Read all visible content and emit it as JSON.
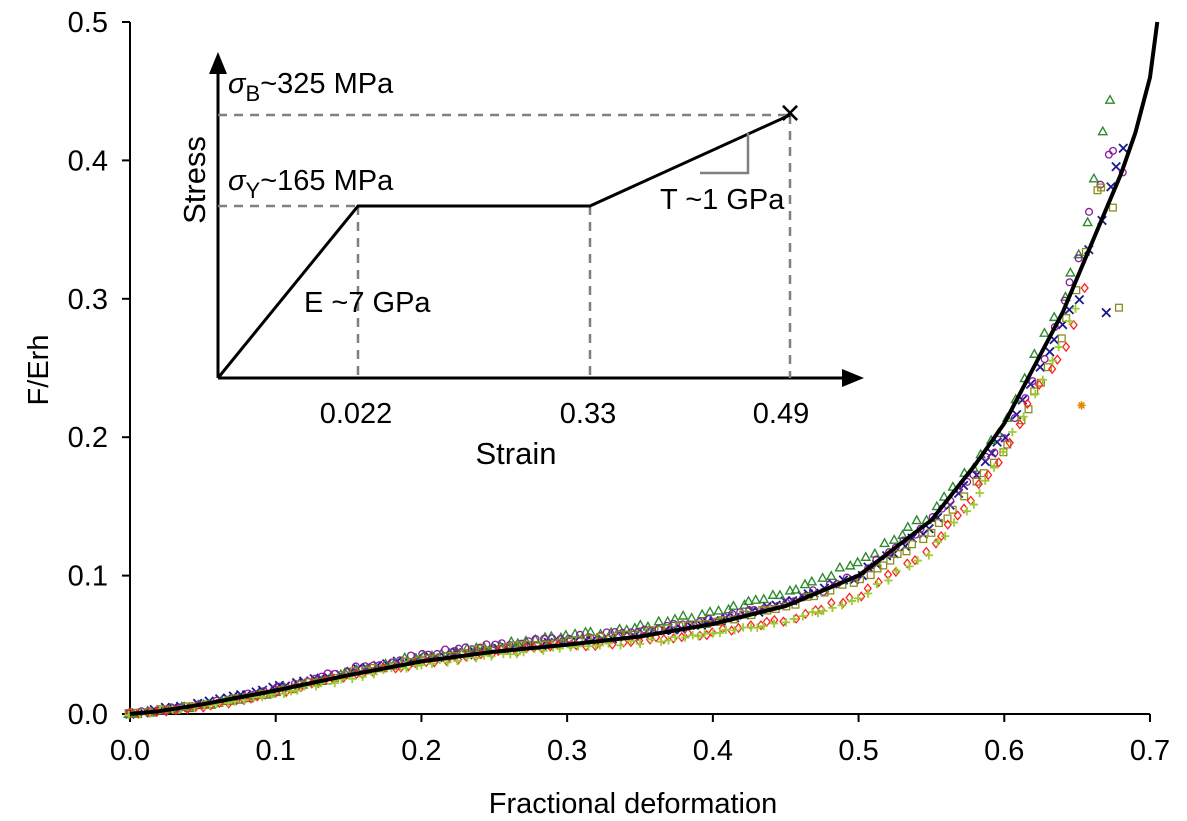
{
  "chart_data": {
    "type": "scatter",
    "title": "",
    "xlabel": "Fractional deformation",
    "ylabel": "F/Erh",
    "xlim": [
      0,
      0.7
    ],
    "ylim": [
      0,
      0.5
    ],
    "xticks": [
      "0.0",
      "0.1",
      "0.2",
      "0.3",
      "0.4",
      "0.5",
      "0.6",
      "0.7"
    ],
    "yticks": [
      "0.0",
      "0.1",
      "0.2",
      "0.3",
      "0.4",
      "0.5"
    ],
    "grid": false,
    "legend": "none",
    "series": [
      {
        "marker": "line",
        "color": "#000000",
        "x": [
          0,
          0.02,
          0.05,
          0.1,
          0.15,
          0.2,
          0.25,
          0.3,
          0.35,
          0.4,
          0.45,
          0.5,
          0.55,
          0.58,
          0.6,
          0.62,
          0.64,
          0.66,
          0.68,
          0.69,
          0.7,
          0.705
        ],
        "y": [
          0,
          0.002,
          0.007,
          0.017,
          0.028,
          0.038,
          0.045,
          0.05,
          0.056,
          0.065,
          0.078,
          0.1,
          0.14,
          0.18,
          0.21,
          0.25,
          0.29,
          0.34,
          0.39,
          0.42,
          0.46,
          0.5
        ]
      },
      {
        "marker": "x",
        "color": "#1a1a8c",
        "x": [
          0,
          0.05,
          0.1,
          0.15,
          0.2,
          0.25,
          0.3,
          0.35,
          0.4,
          0.45,
          0.5,
          0.55,
          0.6,
          0.62,
          0.64,
          0.655,
          0.66,
          0.665,
          0.67,
          0.675,
          0.68,
          0.685,
          0.67
        ],
        "y": [
          0,
          0.008,
          0.019,
          0.031,
          0.04,
          0.046,
          0.052,
          0.058,
          0.066,
          0.08,
          0.1,
          0.135,
          0.2,
          0.24,
          0.28,
          0.31,
          0.34,
          0.355,
          0.375,
          0.39,
          0.405,
          0.415,
          0.29
        ]
      },
      {
        "marker": "triangle",
        "color": "#2e8b2e",
        "x": [
          0,
          0.05,
          0.1,
          0.15,
          0.2,
          0.25,
          0.3,
          0.35,
          0.4,
          0.45,
          0.5,
          0.55,
          0.58,
          0.6,
          0.62,
          0.64,
          0.65,
          0.655,
          0.66,
          0.665,
          0.67,
          0.672,
          0.675
        ],
        "y": [
          0,
          0.006,
          0.016,
          0.03,
          0.042,
          0.05,
          0.056,
          0.063,
          0.074,
          0.088,
          0.11,
          0.145,
          0.18,
          0.21,
          0.255,
          0.3,
          0.33,
          0.35,
          0.38,
          0.4,
          0.43,
          0.44,
          0.46
        ]
      },
      {
        "marker": "circle",
        "color": "#8c1aa0",
        "x": [
          0,
          0.05,
          0.1,
          0.15,
          0.2,
          0.25,
          0.3,
          0.35,
          0.4,
          0.45,
          0.5,
          0.55,
          0.6,
          0.63,
          0.65,
          0.66,
          0.67,
          0.68,
          0.685
        ],
        "y": [
          0,
          0.007,
          0.018,
          0.032,
          0.043,
          0.05,
          0.055,
          0.06,
          0.068,
          0.08,
          0.1,
          0.14,
          0.2,
          0.26,
          0.33,
          0.37,
          0.4,
          0.41,
          0.3
        ]
      },
      {
        "marker": "square",
        "color": "#8c8c1a",
        "x": [
          0,
          0.05,
          0.1,
          0.15,
          0.2,
          0.25,
          0.3,
          0.35,
          0.4,
          0.45,
          0.5,
          0.55,
          0.6,
          0.63,
          0.645,
          0.655,
          0.66,
          0.665,
          0.67,
          0.675,
          0.68
        ],
        "y": [
          0,
          0.006,
          0.016,
          0.029,
          0.04,
          0.047,
          0.052,
          0.058,
          0.066,
          0.078,
          0.097,
          0.13,
          0.19,
          0.25,
          0.29,
          0.33,
          0.37,
          0.38,
          0.39,
          0.36,
          0.285
        ]
      },
      {
        "marker": "diamond",
        "color": "#ff2020",
        "x": [
          0,
          0.05,
          0.1,
          0.15,
          0.2,
          0.25,
          0.3,
          0.35,
          0.4,
          0.45,
          0.5,
          0.55,
          0.58,
          0.6,
          0.62,
          0.64,
          0.65,
          0.655,
          0.66
        ],
        "y": [
          0,
          0.005,
          0.015,
          0.027,
          0.037,
          0.044,
          0.049,
          0.053,
          0.059,
          0.068,
          0.085,
          0.12,
          0.16,
          0.19,
          0.23,
          0.26,
          0.29,
          0.31,
          0.32
        ]
      },
      {
        "marker": "plus",
        "color": "#9acd32",
        "x": [
          0,
          0.05,
          0.1,
          0.15,
          0.2,
          0.25,
          0.3,
          0.35,
          0.4,
          0.45,
          0.5,
          0.55,
          0.58,
          0.6,
          0.62,
          0.64,
          0.65
        ],
        "y": [
          0,
          0.005,
          0.014,
          0.026,
          0.036,
          0.043,
          0.048,
          0.052,
          0.058,
          0.067,
          0.084,
          0.118,
          0.155,
          0.19,
          0.23,
          0.27,
          0.3
        ]
      },
      {
        "marker": "star",
        "color": "#e08a00",
        "x": [
          0.653
        ],
        "y": [
          0.223
        ]
      }
    ],
    "inset": {
      "type": "line",
      "xlabel": "Strain",
      "ylabel": "Stress",
      "xtick_labels": [
        "0.022",
        "0.33",
        "0.49"
      ],
      "points_strain": [
        0,
        0.022,
        0.33,
        0.49
      ],
      "points_stress_mpa": [
        0,
        165,
        165,
        325
      ],
      "break_marker": "×",
      "annotations": {
        "sigma_b_symbol": "σ",
        "sigma_b_sub": "B",
        "sigma_b_text": "~325 MPa",
        "sigma_y_symbol": "σ",
        "sigma_y_sub": "Y",
        "sigma_y_text": "~165 MPa",
        "modulus_e": "E ~7 GPa",
        "tangent_t": "T ~1 GPa"
      }
    }
  }
}
